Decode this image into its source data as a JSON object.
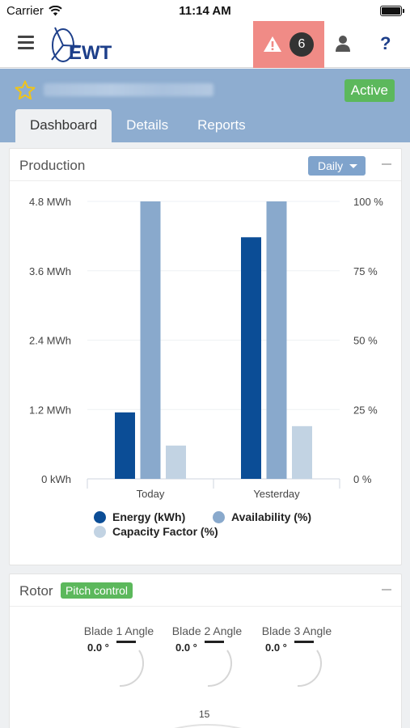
{
  "status_bar": {
    "carrier": "Carrier",
    "time": "11:14 AM"
  },
  "header": {
    "logo_text": "EWT",
    "alert_count": "6",
    "help_label": "?"
  },
  "site": {
    "status": "Active"
  },
  "tabs": [
    {
      "label": "Dashboard",
      "active": true
    },
    {
      "label": "Details",
      "active": false
    },
    {
      "label": "Reports",
      "active": false
    }
  ],
  "production": {
    "title": "Production",
    "period": "Daily"
  },
  "chart_data": {
    "type": "bar",
    "categories": [
      "Today",
      "Yesterday"
    ],
    "series": [
      {
        "name": "Energy (kWh)",
        "axis": "left",
        "color": "#0b4d96",
        "values": [
          1.15,
          4.18
        ]
      },
      {
        "name": "Availability (%)",
        "axis": "right",
        "color": "#89a9cc",
        "values": [
          100,
          100
        ]
      },
      {
        "name": "Capacity Factor (%)",
        "axis": "right",
        "color": "#c2d3e3",
        "values": [
          12,
          19
        ]
      }
    ],
    "y_left": {
      "unit": "MWh",
      "ylim": [
        0,
        4.8
      ],
      "ticks": [
        "0 kWh",
        "1.2 MWh",
        "2.4 MWh",
        "3.6 MWh",
        "4.8 MWh"
      ]
    },
    "y_right": {
      "unit": "%",
      "ylim": [
        0,
        100
      ],
      "ticks": [
        "0 %",
        "25 %",
        "50 %",
        "75 %",
        "100 %"
      ]
    },
    "grid": true,
    "legend_position": "bottom"
  },
  "rotor": {
    "title": "Rotor",
    "mode": "Pitch control",
    "blades": [
      {
        "label": "Blade 1 Angle",
        "value": "0.0 °"
      },
      {
        "label": "Blade 2 Angle",
        "value": "0.0 °"
      },
      {
        "label": "Blade 3 Angle",
        "value": "0.0 °"
      }
    ],
    "speed_scale_label": "15"
  },
  "colors": {
    "header_bg": "#8eadd0",
    "alert_bg": "#f08b86",
    "active_green": "#5cb85c",
    "brand_blue": "#1d3f8a"
  }
}
